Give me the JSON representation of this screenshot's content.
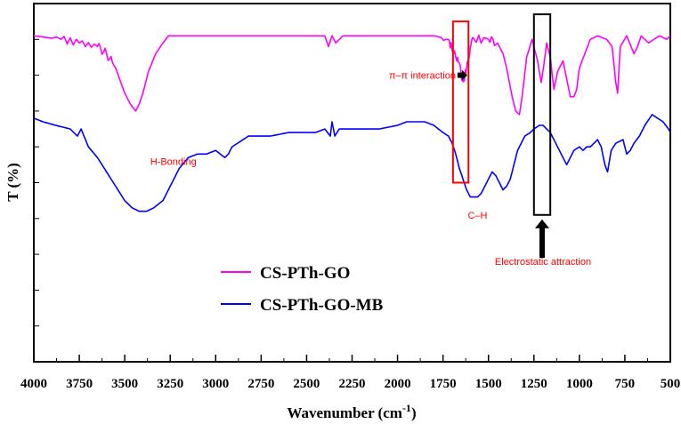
{
  "chart_data": {
    "type": "line",
    "title": "",
    "xlabel": "Wavenumber (cm",
    "xlabel_sup": "-1",
    "xlabel_close": ")",
    "ylabel": "T (%)",
    "xlim": [
      4000,
      500
    ],
    "x_reversed": true,
    "xticks": [
      "4000",
      "3750",
      "3500",
      "3250",
      "3000",
      "2750",
      "2500",
      "2250",
      "2000",
      "1750",
      "1500",
      "1250",
      "1000",
      "750",
      "500"
    ],
    "ylim": [
      0,
      100
    ],
    "grid": false,
    "legend_position": "lower-left",
    "series": [
      {
        "name": "CS-PTh-GO",
        "color": "#ff00ff",
        "x": [
          4000,
          3850,
          3750,
          3650,
          3600,
          3550,
          3500,
          3470,
          3440,
          3420,
          3400,
          3370,
          3330,
          3290,
          3260,
          3200,
          3000,
          2800,
          2600,
          2400,
          2380,
          2360,
          2340,
          2300,
          2100,
          1900,
          1800,
          1720,
          1690,
          1670,
          1650,
          1635,
          1620,
          1600,
          1580,
          1500,
          1450,
          1420,
          1400,
          1370,
          1350,
          1330,
          1315,
          1290,
          1260,
          1230,
          1210,
          1195,
          1180,
          1160,
          1140,
          1120,
          1090,
          1070,
          1050,
          1030,
          1015,
          1000,
          970,
          940,
          900,
          850,
          820,
          800,
          790,
          775,
          740,
          700,
          680,
          660,
          620,
          590,
          560,
          520,
          500
        ],
        "y": [
          91,
          90,
          89,
          88,
          86,
          82,
          75,
          72,
          70,
          72,
          75,
          81,
          86,
          89,
          91,
          91,
          91,
          91,
          91,
          91,
          88,
          91,
          89,
          91,
          91,
          91,
          91,
          90,
          86,
          85,
          80,
          79,
          82,
          88,
          90,
          90,
          89,
          86,
          82,
          74,
          70,
          69,
          74,
          85,
          90,
          84,
          78,
          83,
          89,
          85,
          76,
          81,
          84,
          79,
          74,
          74,
          76,
          82,
          86,
          90,
          91,
          90,
          88,
          78,
          75,
          88,
          91,
          86,
          88,
          91,
          89,
          90,
          91,
          90,
          91
        ]
      },
      {
        "name": "CS-PTh-GO-MB",
        "color": "#0000ff",
        "x": [
          4000,
          3950,
          3880,
          3800,
          3760,
          3740,
          3700,
          3650,
          3600,
          3550,
          3500,
          3460,
          3420,
          3380,
          3340,
          3290,
          3250,
          3200,
          3150,
          3100,
          3050,
          3000,
          2950,
          2930,
          2910,
          2880,
          2850,
          2820,
          2700,
          2600,
          2500,
          2450,
          2400,
          2370,
          2360,
          2345,
          2320,
          2250,
          2100,
          2000,
          1950,
          1900,
          1850,
          1800,
          1750,
          1720,
          1700,
          1680,
          1660,
          1640,
          1620,
          1600,
          1580,
          1560,
          1540,
          1520,
          1500,
          1480,
          1460,
          1440,
          1420,
          1400,
          1380,
          1360,
          1340,
          1300,
          1270,
          1250,
          1220,
          1200,
          1180,
          1160,
          1130,
          1100,
          1070,
          1050,
          1030,
          1000,
          980,
          960,
          940,
          920,
          900,
          880,
          860,
          845,
          835,
          825,
          800,
          760,
          740,
          720,
          700,
          670,
          640,
          600,
          570,
          540,
          510,
          500
        ],
        "y": [
          68,
          67,
          66,
          65,
          63,
          65,
          60,
          57,
          53,
          49,
          45,
          43,
          42,
          42,
          43,
          45,
          49,
          54,
          57,
          58,
          58,
          59,
          57,
          58,
          60,
          61,
          62,
          63,
          63,
          64,
          64,
          64,
          65,
          63,
          67,
          63,
          65,
          65,
          65,
          66,
          67,
          67,
          67,
          66,
          64,
          63,
          61,
          58,
          54,
          51,
          48,
          46,
          46,
          46,
          47,
          49,
          51,
          53,
          52,
          50,
          48,
          49,
          51,
          55,
          59,
          63,
          64,
          65,
          66,
          66,
          65,
          64,
          61,
          58,
          55,
          57,
          59,
          60,
          59,
          60,
          60,
          61,
          62,
          60,
          55,
          53,
          56,
          59,
          61,
          62,
          58,
          59,
          61,
          63,
          66,
          69,
          68,
          67,
          65,
          64
        ]
      }
    ],
    "annotations": [
      {
        "id": "h-bonding",
        "text": "H-Bonding",
        "x": 3360,
        "y": 55
      },
      {
        "id": "pi-pi",
        "text": "π–π interaction",
        "x": 1680,
        "y": 79
      },
      {
        "id": "c-h",
        "text": "C–H",
        "x": 1560,
        "y": 40
      },
      {
        "id": "electrostatic",
        "text": "Electrostatic attraction",
        "x": 1200,
        "y": 27
      }
    ],
    "highlight_boxes": [
      {
        "id": "pi-pi-box",
        "color": "#ff0000",
        "x0": 1695,
        "x1": 1610,
        "y0": 50,
        "y1": 95
      },
      {
        "id": "electrostatic-box",
        "color": "#000000",
        "x0": 1250,
        "x1": 1160,
        "y0": 41,
        "y1": 97
      }
    ]
  }
}
